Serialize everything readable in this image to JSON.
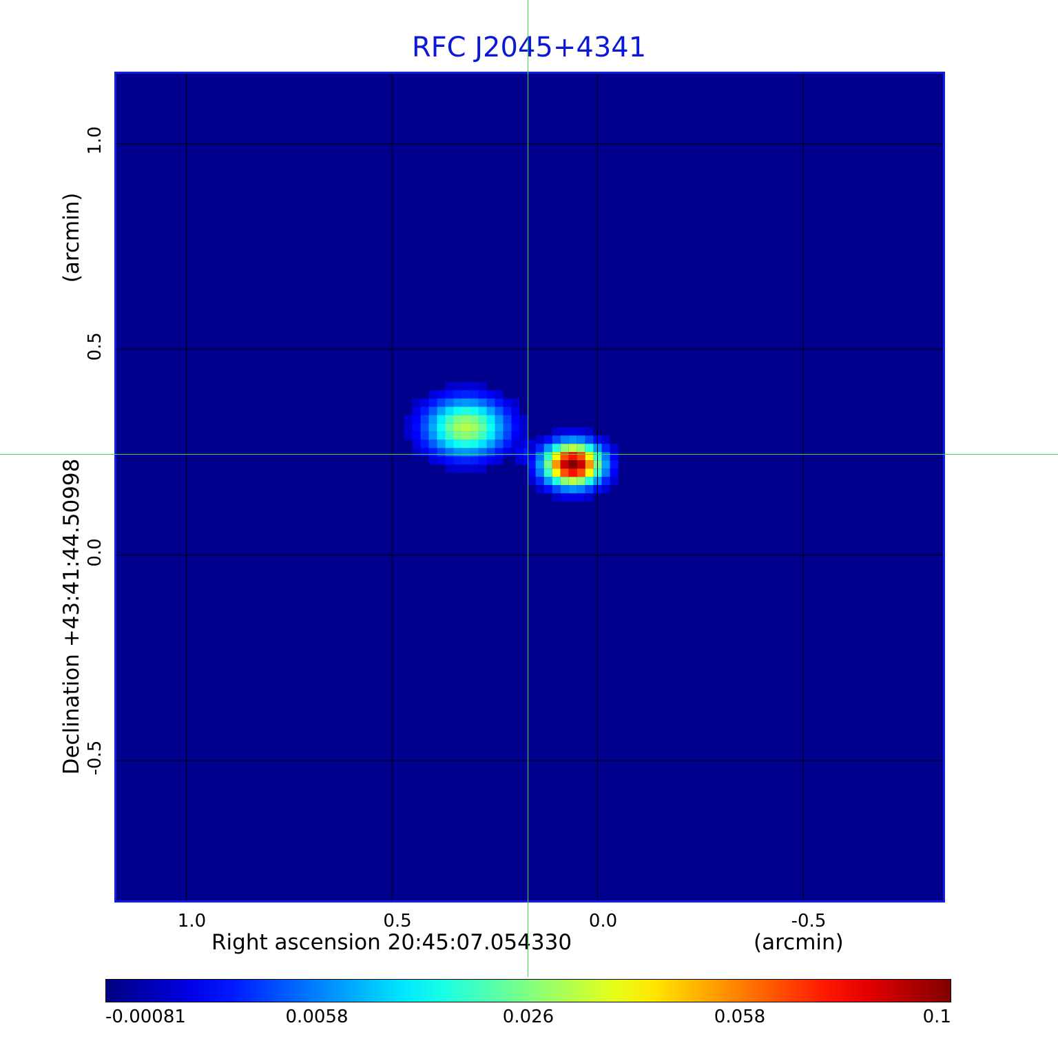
{
  "chart_data": {
    "type": "heatmap",
    "title": "RFC J2045+4341",
    "xlabel": "Right ascension  20:45:07.054330",
    "xunit": "(arcmin)",
    "ylabel": "Declination  +43:41:44.50998",
    "yunit": "(arcmin)",
    "xlim": [
      1.17,
      -0.84
    ],
    "ylim": [
      -0.84,
      1.17
    ],
    "x_ticks": [
      "1.0",
      "0.5",
      "0.0",
      "-0.5"
    ],
    "x_tick_values": [
      1.0,
      0.5,
      0.0,
      -0.5
    ],
    "y_ticks": [
      "1.0",
      "0.5",
      "0.0",
      "-0.5"
    ],
    "y_tick_values": [
      1.0,
      0.5,
      0.0,
      -0.5
    ],
    "grid": true,
    "colormap": "jet",
    "colorbar": {
      "ticks": [
        "-0.00081",
        "0.0058",
        "0.026",
        "0.058",
        "0.1"
      ],
      "min": -0.00081,
      "max": 0.1
    },
    "components": [
      {
        "x": 0.32,
        "y": 0.31,
        "peak": 0.055
      },
      {
        "x": 0.17,
        "y": 0.25,
        "peak": 0.014
      },
      {
        "x": 0.06,
        "y": 0.22,
        "peak": 0.1
      }
    ],
    "crosshair": {
      "x": 0.17,
      "y": 0.245
    },
    "colors": {
      "title": "#0b18d6",
      "frame": "#1020d8",
      "crosshair": "#3ddc4a",
      "background": "#1a3ef0"
    }
  }
}
